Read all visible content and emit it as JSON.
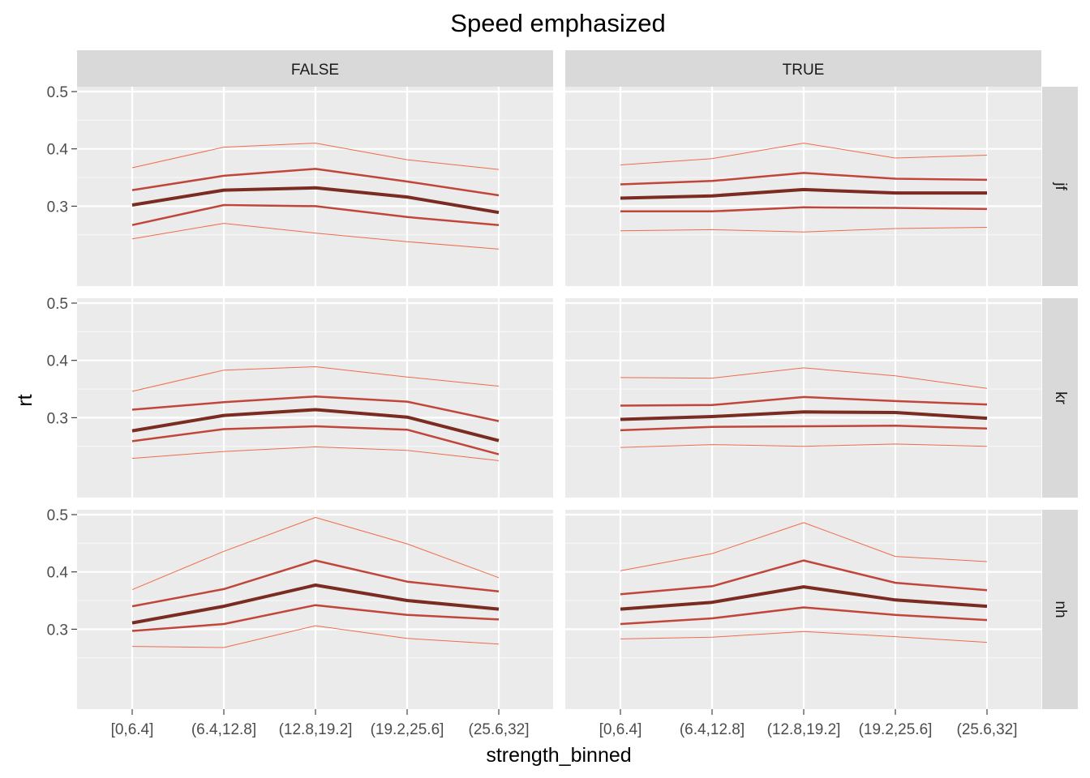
{
  "chart_data": {
    "type": "line",
    "title": "Speed emphasized",
    "xlabel": "strength_binned",
    "ylabel": "rt",
    "categories": [
      "[0,6.4]",
      "(6.4,12.8]",
      "(12.8,19.2]",
      "(19.2,25.6]",
      "(25.6,32]"
    ],
    "col_facets": [
      "FALSE",
      "TRUE"
    ],
    "row_facets": [
      "jf",
      "kr",
      "nh"
    ],
    "ylim": [
      0.2,
      0.5
    ],
    "yticks": [
      0.3,
      0.4,
      0.5
    ],
    "grid": true,
    "legend": "none",
    "series_styles": [
      {
        "color": "#ef6c4a",
        "width": 1
      },
      {
        "color": "#c0463a",
        "width": 2.5
      },
      {
        "color": "#7a2b22",
        "width": 4
      },
      {
        "color": "#c0463a",
        "width": 2.5
      },
      {
        "color": "#ef6c4a",
        "width": 1
      }
    ],
    "panels": [
      {
        "row": "jf",
        "col": "FALSE",
        "series": [
          {
            "values": [
              0.367,
              0.403,
              0.41,
              0.381,
              0.364
            ]
          },
          {
            "values": [
              0.328,
              0.353,
              0.365,
              0.343,
              0.319
            ]
          },
          {
            "values": [
              0.302,
              0.328,
              0.332,
              0.316,
              0.289
            ]
          },
          {
            "values": [
              0.267,
              0.302,
              0.3,
              0.281,
              0.267
            ]
          },
          {
            "values": [
              0.243,
              0.27,
              0.253,
              0.238,
              0.225
            ]
          }
        ]
      },
      {
        "row": "jf",
        "col": "TRUE",
        "series": [
          {
            "values": [
              0.372,
              0.383,
              0.41,
              0.384,
              0.389
            ]
          },
          {
            "values": [
              0.338,
              0.344,
              0.358,
              0.348,
              0.346
            ]
          },
          {
            "values": [
              0.314,
              0.318,
              0.329,
              0.323,
              0.323
            ]
          },
          {
            "values": [
              0.291,
              0.291,
              0.298,
              0.297,
              0.295
            ]
          },
          {
            "values": [
              0.257,
              0.259,
              0.255,
              0.261,
              0.263
            ]
          }
        ]
      },
      {
        "row": "kr",
        "col": "FALSE",
        "series": [
          {
            "values": [
              0.346,
              0.383,
              0.389,
              0.371,
              0.355
            ]
          },
          {
            "values": [
              0.314,
              0.327,
              0.337,
              0.328,
              0.294
            ]
          },
          {
            "values": [
              0.277,
              0.304,
              0.314,
              0.301,
              0.26
            ]
          },
          {
            "values": [
              0.259,
              0.28,
              0.285,
              0.279,
              0.236
            ]
          },
          {
            "values": [
              0.229,
              0.241,
              0.249,
              0.243,
              0.225
            ]
          }
        ]
      },
      {
        "row": "kr",
        "col": "TRUE",
        "series": [
          {
            "values": [
              0.37,
              0.369,
              0.387,
              0.373,
              0.351
            ]
          },
          {
            "values": [
              0.321,
              0.322,
              0.336,
              0.329,
              0.323
            ]
          },
          {
            "values": [
              0.297,
              0.302,
              0.31,
              0.309,
              0.299
            ]
          },
          {
            "values": [
              0.278,
              0.284,
              0.285,
              0.286,
              0.281
            ]
          },
          {
            "values": [
              0.248,
              0.253,
              0.25,
              0.254,
              0.25
            ]
          }
        ]
      },
      {
        "row": "nh",
        "col": "FALSE",
        "series": [
          {
            "values": [
              0.369,
              0.436,
              0.495,
              0.449,
              0.39
            ]
          },
          {
            "values": [
              0.34,
              0.37,
              0.42,
              0.383,
              0.366
            ]
          },
          {
            "values": [
              0.311,
              0.34,
              0.377,
              0.35,
              0.335
            ]
          },
          {
            "values": [
              0.297,
              0.309,
              0.342,
              0.325,
              0.317
            ]
          },
          {
            "values": [
              0.27,
              0.268,
              0.306,
              0.284,
              0.274
            ]
          }
        ]
      },
      {
        "row": "nh",
        "col": "TRUE",
        "series": [
          {
            "values": [
              0.402,
              0.432,
              0.486,
              0.427,
              0.418
            ]
          },
          {
            "values": [
              0.361,
              0.375,
              0.42,
              0.381,
              0.368
            ]
          },
          {
            "values": [
              0.335,
              0.347,
              0.374,
              0.351,
              0.34
            ]
          },
          {
            "values": [
              0.309,
              0.319,
              0.338,
              0.325,
              0.316
            ]
          },
          {
            "values": [
              0.283,
              0.286,
              0.296,
              0.287,
              0.277
            ]
          }
        ]
      }
    ]
  }
}
